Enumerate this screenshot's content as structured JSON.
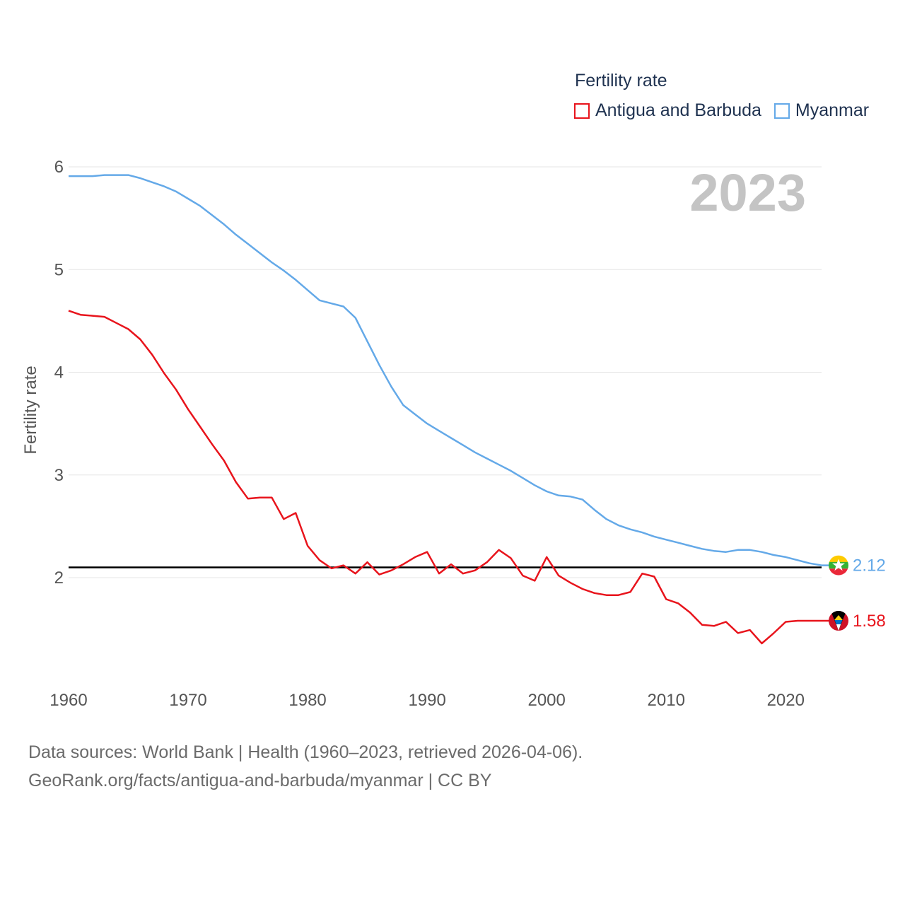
{
  "chart_data": {
    "type": "line",
    "title": "Fertility rate",
    "ylabel": "Fertility rate",
    "xlabel": "",
    "year_label": "2023",
    "xlim": [
      1960,
      2023
    ],
    "ylim": [
      1.4,
      6
    ],
    "x_ticks": [
      1960,
      1970,
      1980,
      1990,
      2000,
      2010,
      2020
    ],
    "y_ticks": [
      2,
      3,
      4,
      5,
      6
    ],
    "reference_line": 2.1,
    "x": [
      1960,
      1961,
      1962,
      1963,
      1964,
      1965,
      1966,
      1967,
      1968,
      1969,
      1970,
      1971,
      1972,
      1973,
      1974,
      1975,
      1976,
      1977,
      1978,
      1979,
      1980,
      1981,
      1982,
      1983,
      1984,
      1985,
      1986,
      1987,
      1988,
      1989,
      1990,
      1991,
      1992,
      1993,
      1994,
      1995,
      1996,
      1997,
      1998,
      1999,
      2000,
      2001,
      2002,
      2003,
      2004,
      2005,
      2006,
      2007,
      2008,
      2009,
      2010,
      2011,
      2012,
      2013,
      2014,
      2015,
      2016,
      2017,
      2018,
      2019,
      2020,
      2021,
      2022,
      2023
    ],
    "series": [
      {
        "name": "Antigua and Barbuda",
        "color": "#e8141c",
        "end_label": "1.58",
        "values": [
          4.6,
          4.56,
          4.55,
          4.54,
          4.48,
          4.42,
          4.32,
          4.17,
          3.99,
          3.83,
          3.64,
          3.47,
          3.3,
          3.14,
          2.93,
          2.77,
          2.78,
          2.78,
          2.57,
          2.63,
          2.31,
          2.17,
          2.09,
          2.12,
          2.04,
          2.15,
          2.03,
          2.07,
          2.13,
          2.2,
          2.25,
          2.04,
          2.13,
          2.04,
          2.07,
          2.15,
          2.27,
          2.19,
          2.02,
          1.97,
          2.2,
          2.02,
          1.95,
          1.89,
          1.85,
          1.83,
          1.83,
          1.86,
          2.04,
          2.01,
          1.79,
          1.75,
          1.66,
          1.54,
          1.53,
          1.57,
          1.46,
          1.49,
          1.36,
          1.46,
          1.57,
          1.58,
          1.58,
          1.58
        ]
      },
      {
        "name": "Myanmar",
        "color": "#64a9e8",
        "end_label": "2.12",
        "values": [
          5.91,
          5.91,
          5.91,
          5.92,
          5.92,
          5.92,
          5.89,
          5.85,
          5.81,
          5.76,
          5.69,
          5.62,
          5.53,
          5.44,
          5.34,
          5.25,
          5.16,
          5.07,
          4.99,
          4.9,
          4.8,
          4.7,
          4.67,
          4.64,
          4.53,
          4.3,
          4.07,
          3.86,
          3.68,
          3.59,
          3.5,
          3.43,
          3.36,
          3.29,
          3.22,
          3.16,
          3.1,
          3.04,
          2.97,
          2.9,
          2.84,
          2.8,
          2.79,
          2.76,
          2.66,
          2.57,
          2.51,
          2.47,
          2.44,
          2.4,
          2.37,
          2.34,
          2.31,
          2.28,
          2.26,
          2.25,
          2.27,
          2.27,
          2.25,
          2.22,
          2.2,
          2.17,
          2.14,
          2.12
        ]
      }
    ]
  },
  "legend": {
    "title": "Fertility rate",
    "items": [
      {
        "label": "Antigua and Barbuda",
        "color": "#e8141c"
      },
      {
        "label": "Myanmar",
        "color": "#64a9e8"
      }
    ]
  },
  "footer": {
    "line1": "Data sources: World Bank | Health (1960–2023, retrieved 2026-04-06).",
    "line2": "GeoRank.org/facts/antigua-and-barbuda/myanmar | CC BY"
  }
}
